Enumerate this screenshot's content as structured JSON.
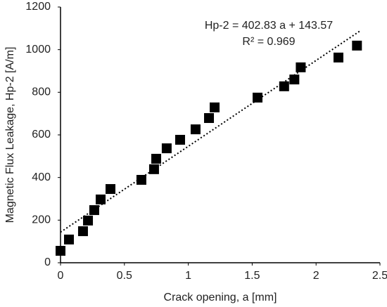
{
  "chart_data": {
    "type": "scatter",
    "x_label": "Crack opening, a [mm]",
    "y_label": "Magnetic Flux Leakage, Hp-2 [A/m]",
    "annotations": [
      "Hp-2 = 402.83 a + 143.57",
      "R² = 0.969"
    ],
    "x": [
      0,
      0.066,
      0.176,
      0.215,
      0.264,
      0.314,
      0.391,
      0.633,
      0.732,
      0.749,
      0.831,
      0.936,
      1.057,
      1.162,
      1.206,
      1.542,
      1.75,
      1.83,
      1.88,
      2.175,
      2.32
    ],
    "values": [
      56,
      109,
      148,
      198,
      247,
      297,
      346,
      389,
      439,
      488,
      537,
      577,
      626,
      679,
      729,
      775,
      828,
      860,
      917,
      963,
      1019
    ],
    "color": "#000000",
    "trendline": {
      "slope": 402.83,
      "intercept": 143.57,
      "xlim": [
        0,
        2.34
      ]
    },
    "xlim": [
      0,
      2.5
    ],
    "xticks": [
      0,
      0.5,
      1,
      1.5,
      2,
      2.5
    ],
    "ylim": [
      0,
      1200
    ],
    "yticks": [
      0,
      200,
      400,
      600,
      800,
      1000,
      1200
    ],
    "grid": false
  }
}
